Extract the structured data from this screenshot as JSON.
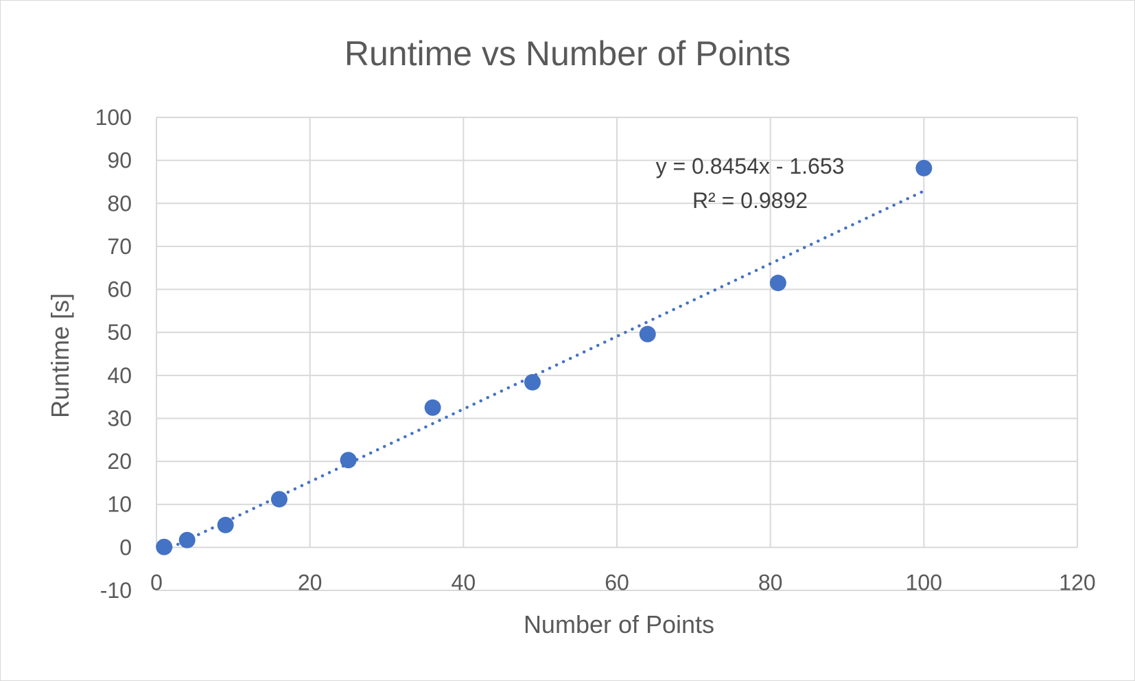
{
  "chart_data": {
    "type": "scatter",
    "title": "Runtime vs Number of Points",
    "xlabel": "Number of Points",
    "ylabel": "Runtime [s]",
    "xlim": [
      0,
      120
    ],
    "ylim": [
      -10,
      100
    ],
    "x_ticks": [
      0,
      20,
      40,
      60,
      80,
      100,
      120
    ],
    "y_ticks": [
      -10,
      0,
      10,
      20,
      30,
      40,
      50,
      60,
      70,
      80,
      90,
      100
    ],
    "grid": true,
    "legend": "none",
    "marker_color": "#4472c4",
    "series": [
      {
        "x": [
          1,
          4,
          9,
          16,
          25,
          36,
          49,
          64,
          81,
          100
        ],
        "y": [
          0.1,
          1.7,
          5.2,
          11.2,
          20.3,
          32.5,
          38.4,
          49.6,
          61.5,
          88.2
        ]
      }
    ],
    "trendline": {
      "type": "linear",
      "slope": 0.8454,
      "intercept": -1.653,
      "x_range": [
        1,
        100
      ],
      "style": "dotted",
      "color": "#4472c4",
      "equation": "y = 0.8454x - 1.653",
      "r_squared": "R² = 0.9892"
    }
  }
}
